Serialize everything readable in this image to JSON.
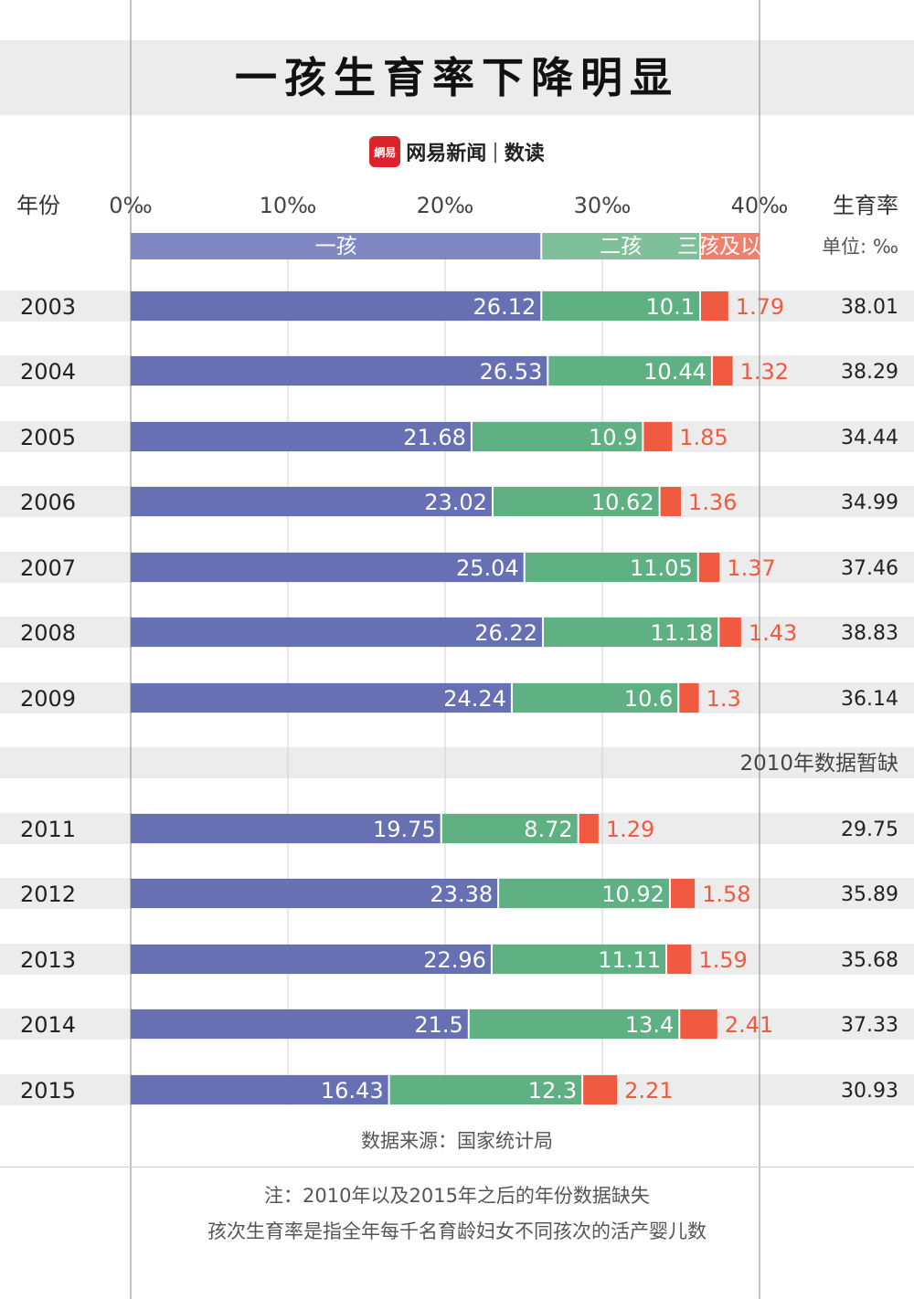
{
  "title": "一孩生育率下降明显",
  "brand": {
    "logo_text": "網易",
    "name": "网易新闻",
    "separator": "|",
    "sub": "数读"
  },
  "header": {
    "year_label": "年份",
    "total_label": "生育率",
    "unit_label": "单位: ‰"
  },
  "missing_note": "2010年数据暂缺",
  "source": "数据来源：国家统计局",
  "notes": [
    "注：2010年以及2015年之后的年份数据缺失",
    "孩次生育率是指全年每千名育龄妇女不同孩次的活产婴儿数"
  ],
  "colors": {
    "first": "#6670b3",
    "second": "#5fb083",
    "third": "#ef5a41",
    "legend_first": "#8088c4",
    "legend_second": "#7fc09a",
    "legend_third": "#f07f6c",
    "row_band": "#ececec",
    "grid": "#cfcfcf"
  },
  "chart_data": {
    "type": "bar",
    "orientation": "horizontal",
    "stacked": true,
    "title": "一孩生育率下降明显",
    "xlabel": "",
    "ylabel": "年份",
    "unit": "‰",
    "xlim": [
      0,
      40
    ],
    "ticks": [
      0,
      10,
      20,
      30,
      40
    ],
    "tick_labels": [
      "0‰",
      "10‰",
      "20‰",
      "30‰",
      "40‰"
    ],
    "legend": [
      "一孩",
      "二孩",
      "三孩及以上"
    ],
    "legend_position": "top",
    "total_label": "生育率",
    "categories": [
      "2003",
      "2004",
      "2005",
      "2006",
      "2007",
      "2008",
      "2009",
      "2011",
      "2012",
      "2013",
      "2014",
      "2015"
    ],
    "series": [
      {
        "name": "一孩",
        "values": [
          26.12,
          26.53,
          21.68,
          23.02,
          25.04,
          26.22,
          24.24,
          19.75,
          23.38,
          22.96,
          21.5,
          16.43
        ]
      },
      {
        "name": "二孩",
        "values": [
          10.1,
          10.44,
          10.9,
          10.62,
          11.05,
          11.18,
          10.6,
          8.72,
          10.92,
          11.11,
          13.4,
          12.3
        ]
      },
      {
        "name": "三孩及以上",
        "values": [
          1.79,
          1.32,
          1.85,
          1.36,
          1.37,
          1.43,
          1.3,
          1.29,
          1.58,
          1.59,
          2.41,
          2.21
        ]
      }
    ],
    "totals": [
      38.01,
      38.29,
      34.44,
      34.99,
      37.46,
      38.83,
      36.14,
      29.75,
      35.89,
      35.68,
      37.33,
      30.93
    ]
  }
}
